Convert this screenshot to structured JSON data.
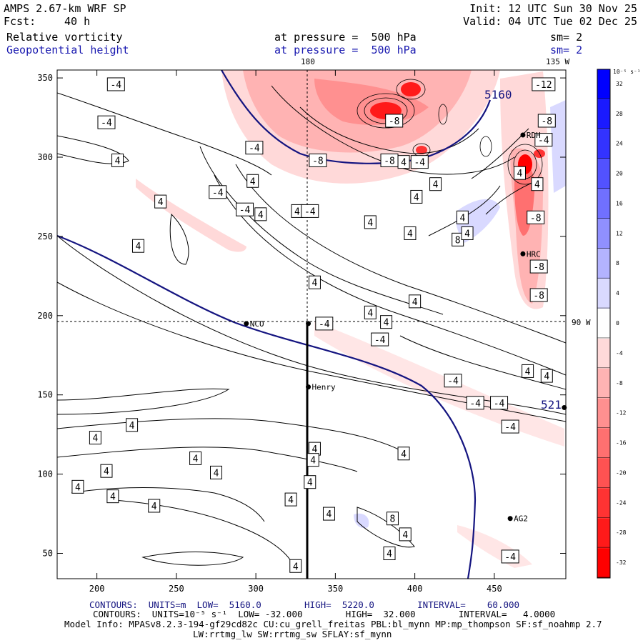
{
  "header": {
    "model": "AMPS 2.67-km WRF SP",
    "fcst_label": "Fcst:",
    "fcst_value": "40 h",
    "init": "Init: 12 UTC Sun 30 Nov 25",
    "valid": "Valid: 04 UTC Tue 02 Dec 25",
    "field1": "Relative vorticity",
    "field1_level": "at pressure =  500 hPa",
    "field1_sm": "sm= 2",
    "field2": "Geopotential height",
    "field2_level": "at pressure =  500 hPa",
    "field2_sm": "sm= 2"
  },
  "chart_data": {
    "type": "contour",
    "x_ticks": [
      "200",
      "250",
      "300",
      "350",
      "400",
      "450"
    ],
    "y_ticks": [
      "50",
      "100",
      "150",
      "200",
      "250",
      "300",
      "350"
    ],
    "xlim": [
      175,
      495
    ],
    "ylim": [
      34,
      355
    ],
    "top_labels": [
      "180",
      "135 W"
    ],
    "right_label": "90 W",
    "stations": [
      {
        "name": "NCO",
        "x": 294,
        "y": 195
      },
      {
        "name": "",
        "x": 333,
        "y": 195
      },
      {
        "name": "Henry",
        "x": 333,
        "y": 155
      },
      {
        "name": "AG2",
        "x": 460,
        "y": 72
      },
      {
        "name": "HRC",
        "x": 468,
        "y": 239
      },
      {
        "name": "RDH",
        "x": 468,
        "y": 314
      },
      {
        "name": "",
        "x": 494,
        "y": 142
      }
    ],
    "height_labels": [
      "5160",
      "521"
    ],
    "vorticity_labels": [
      {
        "v": "-4",
        "x": 212,
        "y": 346
      },
      {
        "v": "-4",
        "x": 206,
        "y": 322
      },
      {
        "v": "4",
        "x": 213,
        "y": 298
      },
      {
        "v": "-4",
        "x": 299,
        "y": 306
      },
      {
        "v": "-4",
        "x": 276,
        "y": 278
      },
      {
        "v": "-4",
        "x": 293,
        "y": 267
      },
      {
        "v": "4",
        "x": 298,
        "y": 285
      },
      {
        "v": "4",
        "x": 326,
        "y": 266
      },
      {
        "v": "-4",
        "x": 334,
        "y": 266
      },
      {
        "v": "-8",
        "x": 339,
        "y": 298
      },
      {
        "v": "-8",
        "x": 384,
        "y": 298
      },
      {
        "v": "-8",
        "x": 387,
        "y": 323
      },
      {
        "v": "4",
        "x": 393,
        "y": 297
      },
      {
        "v": "-4",
        "x": 403,
        "y": 297
      },
      {
        "v": "4",
        "x": 413,
        "y": 283
      },
      {
        "v": "4",
        "x": 401,
        "y": 275
      },
      {
        "v": "4",
        "x": 372,
        "y": 259
      },
      {
        "v": "4",
        "x": 397,
        "y": 252
      },
      {
        "v": "4",
        "x": 430,
        "y": 262
      },
      {
        "v": "8",
        "x": 427,
        "y": 248
      },
      {
        "v": "4",
        "x": 433,
        "y": 252
      },
      {
        "v": "4",
        "x": 240,
        "y": 272
      },
      {
        "v": "4",
        "x": 226,
        "y": 244
      },
      {
        "v": "4",
        "x": 303,
        "y": 264
      },
      {
        "v": "4",
        "x": 337,
        "y": 221
      },
      {
        "v": "4",
        "x": 372,
        "y": 202
      },
      {
        "v": "4",
        "x": 382,
        "y": 196
      },
      {
        "v": "4",
        "x": 400,
        "y": 209
      },
      {
        "v": "-4",
        "x": 343,
        "y": 195
      },
      {
        "v": "-4",
        "x": 378,
        "y": 185
      },
      {
        "v": "-12",
        "x": 481,
        "y": 346
      },
      {
        "v": "-8",
        "x": 483,
        "y": 323
      },
      {
        "v": "-4",
        "x": 481,
        "y": 311
      },
      {
        "v": "4",
        "x": 466,
        "y": 290
      },
      {
        "v": "4",
        "x": 477,
        "y": 283
      },
      {
        "v": "-8",
        "x": 476,
        "y": 262
      },
      {
        "v": "-8",
        "x": 478,
        "y": 231
      },
      {
        "v": "-8",
        "x": 478,
        "y": 213
      },
      {
        "v": "4",
        "x": 471,
        "y": 165
      },
      {
        "v": "4",
        "x": 483,
        "y": 162
      },
      {
        "v": "-4",
        "x": 424,
        "y": 159
      },
      {
        "v": "-4",
        "x": 438,
        "y": 145
      },
      {
        "v": "-4",
        "x": 453,
        "y": 145
      },
      {
        "v": "-4",
        "x": 460,
        "y": 130
      },
      {
        "v": "4",
        "x": 188,
        "y": 92
      },
      {
        "v": "4",
        "x": 199,
        "y": 123
      },
      {
        "v": "4",
        "x": 206,
        "y": 102
      },
      {
        "v": "4",
        "x": 210,
        "y": 86
      },
      {
        "v": "4",
        "x": 222,
        "y": 131
      },
      {
        "v": "4",
        "x": 236,
        "y": 80
      },
      {
        "v": "4",
        "x": 262,
        "y": 110
      },
      {
        "v": "4",
        "x": 275,
        "y": 101
      },
      {
        "v": "4",
        "x": 322,
        "y": 84
      },
      {
        "v": "4",
        "x": 346,
        "y": 75
      },
      {
        "v": "4",
        "x": 393,
        "y": 113
      },
      {
        "v": "4",
        "x": 337,
        "y": 116
      },
      {
        "v": "4",
        "x": 336,
        "y": 109
      },
      {
        "v": "4",
        "x": 334,
        "y": 95
      },
      {
        "v": "8",
        "x": 386,
        "y": 72
      },
      {
        "v": "4",
        "x": 394,
        "y": 62
      },
      {
        "v": "4",
        "x": 384,
        "y": 50
      },
      {
        "v": "4",
        "x": 325,
        "y": 42
      },
      {
        "v": "-4",
        "x": 460,
        "y": 48
      }
    ],
    "colorbar": {
      "unit": "10⁻⁵ s⁻¹",
      "labels": [
        "32",
        "28",
        "24",
        "20",
        "16",
        "12",
        "8",
        "4",
        "0",
        "-4",
        "-8",
        "-12",
        "-16",
        "-20",
        "-24",
        "-28",
        "-32"
      ],
      "colors": [
        "#0000ff",
        "#1a1aff",
        "#3333ff",
        "#5252ff",
        "#7070ff",
        "#9090ff",
        "#b3b3ff",
        "#d9d9ff",
        "#ffffff",
        "#ffd9d9",
        "#ffb3b3",
        "#ff9090",
        "#ff7070",
        "#ff5252",
        "#ff3333",
        "#ff1a1a",
        "#ff0000"
      ]
    }
  },
  "footer": {
    "line1": "CONTOURS:  UNITS=m  LOW=  5160.0        HIGH=  5220.0        INTERVAL=    60.000",
    "line2": "CONTOURS:  UNITS=10⁻⁵ s⁻¹  LOW= -32.000        HIGH=  32.000        INTERVAL=   4.0000",
    "line3": "Model Info: MPASv8.2.3-194-gf29cd82c CU:cu_grell_freitas PBL:bl_mynn MP:mp_thompson SF:sf_noahmp 2.7",
    "line4": "LW:rrtmg_lw SW:rrtmg_sw SFLAY:sf_mynn"
  }
}
